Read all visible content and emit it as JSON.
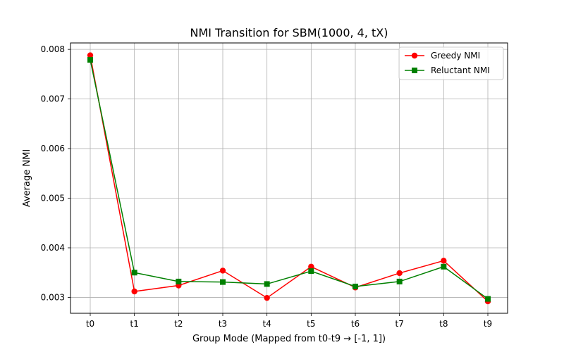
{
  "chart_data": {
    "type": "line",
    "title": "NMI Transition for SBM(1000, 4, tX)",
    "xlabel": "Group Mode (Mapped from t0-t9 → [-1, 1])",
    "ylabel": "Average NMI",
    "categories": [
      "t0",
      "t1",
      "t2",
      "t3",
      "t4",
      "t5",
      "t6",
      "t7",
      "t8",
      "t9"
    ],
    "ylim": [
      0.00268,
      0.00813
    ],
    "yticks": [
      0.003,
      0.004,
      0.005,
      0.006,
      0.007,
      0.008
    ],
    "ytick_labels": [
      "0.003",
      "0.004",
      "0.005",
      "0.006",
      "0.007",
      "0.008"
    ],
    "grid": true,
    "legend_position": "top-right",
    "series": [
      {
        "name": "Greedy NMI",
        "color": "#ff0000",
        "marker": "circle",
        "values": [
          0.00788,
          0.00312,
          0.00324,
          0.00354,
          0.00299,
          0.00362,
          0.0032,
          0.00349,
          0.00374,
          0.00292
        ]
      },
      {
        "name": "Reluctant NMI",
        "color": "#008000",
        "marker": "square",
        "values": [
          0.00779,
          0.0035,
          0.00332,
          0.00331,
          0.00327,
          0.00353,
          0.00322,
          0.00332,
          0.00362,
          0.00297
        ]
      }
    ]
  }
}
